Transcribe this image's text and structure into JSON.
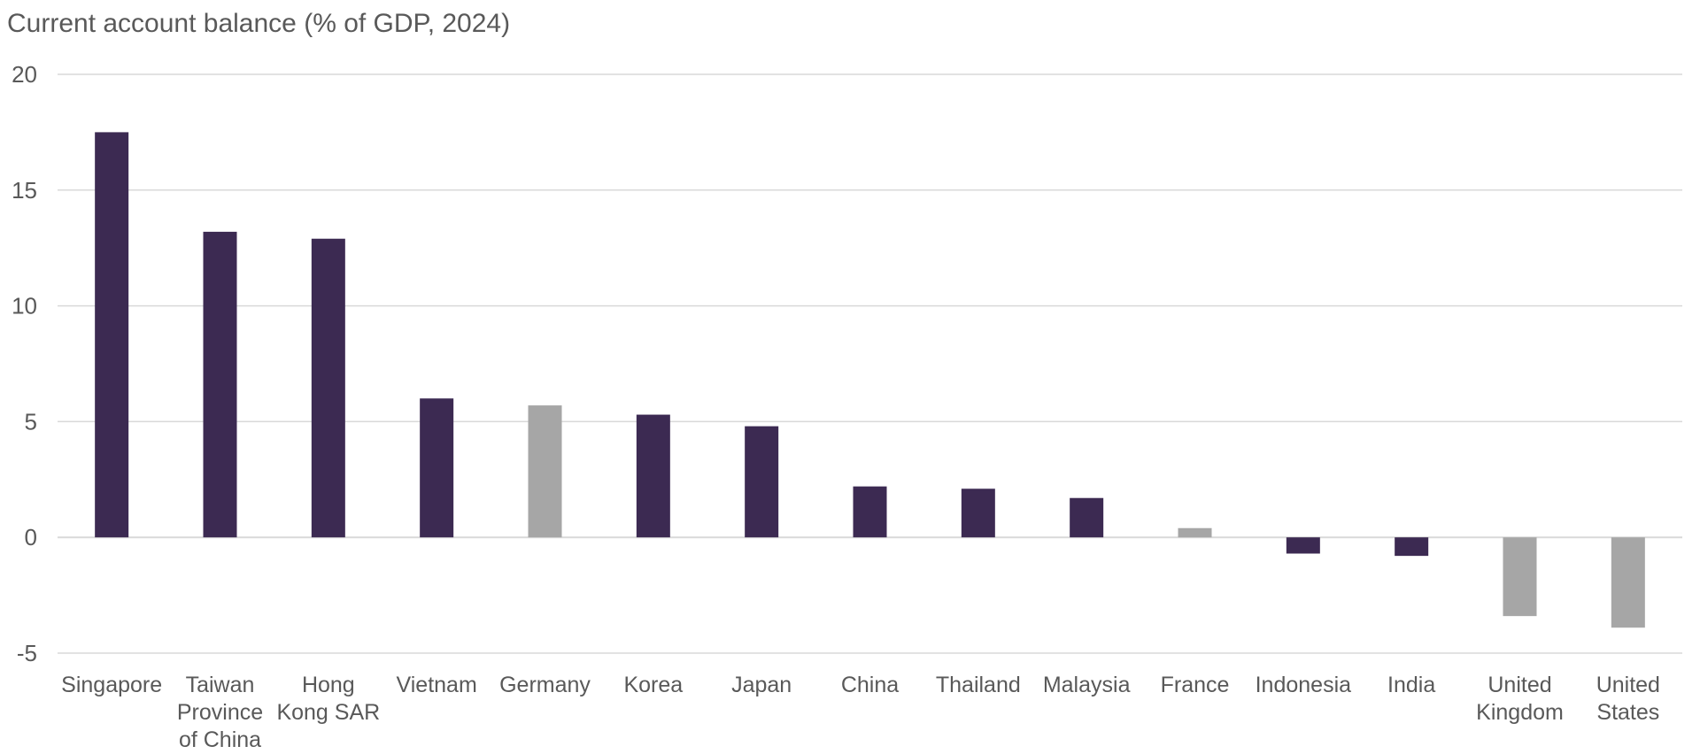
{
  "chart_data": {
    "type": "bar",
    "title": "Current account balance (% of GDP, 2024)",
    "xlabel": "",
    "ylabel": "",
    "ylim": [
      -5,
      20
    ],
    "yticks": [
      "20",
      "15",
      "10",
      "5",
      "0",
      "-5"
    ],
    "grid": true,
    "categories": [
      [
        "Singapore"
      ],
      [
        "Taiwan",
        "Province",
        "of China"
      ],
      [
        "Hong",
        "Kong SAR"
      ],
      [
        "Vietnam"
      ],
      [
        "Germany"
      ],
      [
        "Korea"
      ],
      [
        "Japan"
      ],
      [
        "China"
      ],
      [
        "Thailand"
      ],
      [
        "Malaysia"
      ],
      [
        "France"
      ],
      [
        "Indonesia"
      ],
      [
        "India"
      ],
      [
        "United",
        "Kingdom"
      ],
      [
        "United",
        "States"
      ]
    ],
    "values": [
      17.5,
      13.2,
      12.9,
      6.0,
      5.7,
      5.3,
      4.8,
      2.2,
      2.1,
      1.7,
      0.4,
      -0.7,
      -0.8,
      -3.4,
      -3.9
    ],
    "bar_colors": [
      "#3c2a52",
      "#3c2a52",
      "#3c2a52",
      "#3c2a52",
      "#a6a6a6",
      "#3c2a52",
      "#3c2a52",
      "#3c2a52",
      "#3c2a52",
      "#3c2a52",
      "#a6a6a6",
      "#3c2a52",
      "#3c2a52",
      "#a6a6a6",
      "#a6a6a6"
    ],
    "gridline_color": "#d9d9d9"
  }
}
